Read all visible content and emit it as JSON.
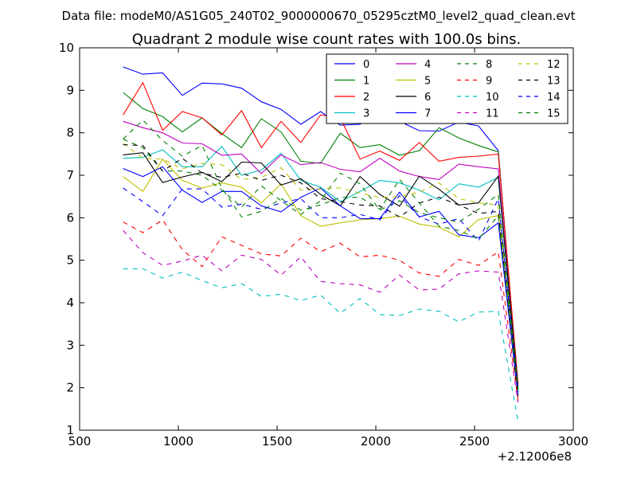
{
  "chart_data": {
    "type": "line",
    "suptitle": "Data file: modeM0/AS1G05_240T02_9000000670_05295cztM0_level2_quad_clean.evt",
    "title": "Quadrant 2 module wise count rates with 100.0s bins.",
    "xlabel": "",
    "ylabel": "",
    "x_offset_label": "+2.12006e8",
    "xlim": [
      500,
      3000
    ],
    "ylim": [
      1,
      10
    ],
    "xticks": [
      "500",
      "1000",
      "1500",
      "2000",
      "2500",
      "3000"
    ],
    "yticks": [
      "1",
      "2",
      "3",
      "4",
      "5",
      "6",
      "7",
      "8",
      "9",
      "10"
    ],
    "grid": false,
    "legend_position": "top-right",
    "legend_columns": 4,
    "x": [
      720,
      820,
      920,
      1020,
      1120,
      1220,
      1320,
      1420,
      1520,
      1620,
      1720,
      1820,
      1920,
      2020,
      2120,
      2220,
      2320,
      2420,
      2520,
      2620,
      2720
    ],
    "series": [
      {
        "name": "0",
        "color": "#0000ff",
        "dash": "solid",
        "values": [
          9.55,
          9.38,
          9.41,
          8.88,
          9.17,
          9.15,
          9.05,
          8.73,
          8.55,
          8.2,
          8.5,
          8.18,
          8.2,
          8.52,
          8.27,
          8.05,
          8.04,
          8.25,
          8.16,
          7.58,
          1.95
        ]
      },
      {
        "name": "1",
        "color": "#008000",
        "dash": "solid",
        "values": [
          8.95,
          8.57,
          8.38,
          8.02,
          8.35,
          7.98,
          7.65,
          8.33,
          8.02,
          7.33,
          7.28,
          7.99,
          7.65,
          7.72,
          7.47,
          7.58,
          8.12,
          7.88,
          7.7,
          7.55,
          2.05
        ]
      },
      {
        "name": "2",
        "color": "#ff0000",
        "dash": "solid",
        "values": [
          8.42,
          9.18,
          8.06,
          8.5,
          8.35,
          7.95,
          8.52,
          7.65,
          8.27,
          7.77,
          8.42,
          8.35,
          7.38,
          7.57,
          7.35,
          7.77,
          7.33,
          7.42,
          7.45,
          7.5,
          2.1
        ]
      },
      {
        "name": "3",
        "color": "#00bfbf",
        "dash": "solid",
        "values": [
          7.4,
          7.42,
          7.6,
          7.2,
          7.2,
          7.68,
          7.0,
          7.12,
          7.52,
          6.88,
          6.72,
          6.38,
          6.62,
          6.88,
          6.82,
          6.65,
          6.42,
          6.8,
          6.72,
          6.95,
          2.0
        ]
      },
      {
        "name": "4",
        "color": "#bf00bf",
        "dash": "solid",
        "values": [
          8.27,
          8.12,
          8.0,
          7.76,
          7.74,
          7.47,
          7.5,
          7.04,
          7.48,
          7.25,
          7.3,
          7.14,
          7.08,
          7.4,
          7.1,
          6.97,
          6.9,
          7.26,
          7.2,
          7.15,
          1.9
        ]
      },
      {
        "name": "5",
        "color": "#bfbf00",
        "dash": "solid",
        "values": [
          6.97,
          6.62,
          7.38,
          6.88,
          6.7,
          6.82,
          6.72,
          6.35,
          6.8,
          6.05,
          5.8,
          5.88,
          5.95,
          5.98,
          6.04,
          5.85,
          5.78,
          5.55,
          5.96,
          6.05,
          1.85
        ]
      },
      {
        "name": "6",
        "color": "#000000",
        "dash": "solid",
        "values": [
          7.48,
          7.53,
          6.83,
          6.96,
          7.07,
          6.85,
          7.31,
          7.29,
          6.77,
          6.92,
          6.55,
          6.28,
          6.97,
          6.55,
          6.27,
          6.98,
          6.67,
          6.3,
          6.35,
          6.98,
          2.0
        ]
      },
      {
        "name": "7",
        "color": "#0000ff",
        "dash": "solid",
        "values": [
          7.16,
          6.97,
          7.2,
          6.65,
          6.36,
          6.62,
          6.62,
          6.28,
          6.14,
          6.48,
          6.7,
          6.28,
          5.98,
          5.98,
          6.6,
          6.02,
          6.15,
          5.6,
          5.53,
          5.88,
          1.8
        ]
      },
      {
        "name": "8",
        "color": "#008000",
        "dash": "dashed",
        "values": [
          7.85,
          7.65,
          7.1,
          7.1,
          7.0,
          6.65,
          6.25,
          6.75,
          6.4,
          6.08,
          6.4,
          7.05,
          6.8,
          6.18,
          6.4,
          6.12,
          6.0,
          5.9,
          6.2,
          6.55,
          1.95
        ]
      },
      {
        "name": "9",
        "color": "#ff0000",
        "dash": "dashed",
        "values": [
          5.9,
          5.65,
          5.95,
          5.25,
          4.85,
          5.55,
          5.35,
          5.15,
          5.1,
          5.52,
          5.2,
          5.4,
          5.08,
          5.12,
          5.0,
          4.7,
          4.62,
          5.02,
          4.88,
          5.2,
          1.7
        ]
      },
      {
        "name": "10",
        "color": "#00bfbf",
        "dash": "dashed",
        "values": [
          4.8,
          4.8,
          4.58,
          4.72,
          4.52,
          4.35,
          4.45,
          4.15,
          4.2,
          4.05,
          4.18,
          3.75,
          4.1,
          3.72,
          3.7,
          3.85,
          3.8,
          3.55,
          3.78,
          3.8,
          1.2
        ]
      },
      {
        "name": "11",
        "color": "#bf00bf",
        "dash": "dashed",
        "values": [
          5.7,
          5.18,
          4.88,
          4.98,
          5.12,
          4.75,
          5.12,
          5.02,
          4.65,
          5.08,
          4.5,
          4.45,
          4.42,
          4.25,
          4.65,
          4.3,
          4.32,
          4.68,
          4.75,
          4.72,
          1.65
        ]
      },
      {
        "name": "12",
        "color": "#bfbf00",
        "dash": "dashed",
        "values": [
          7.75,
          7.4,
          7.38,
          7.15,
          7.28,
          7.25,
          6.9,
          6.95,
          7.18,
          6.65,
          6.68,
          6.7,
          6.58,
          6.48,
          6.5,
          6.6,
          6.82,
          6.45,
          6.35,
          6.3,
          1.85
        ]
      },
      {
        "name": "13",
        "color": "#000000",
        "dash": "dashed",
        "values": [
          7.72,
          7.7,
          7.1,
          7.4,
          7.05,
          6.95,
          7.05,
          6.88,
          7.0,
          6.82,
          6.45,
          6.38,
          6.3,
          6.28,
          6.02,
          6.35,
          6.48,
          6.3,
          6.1,
          6.15,
          1.8
        ]
      },
      {
        "name": "14",
        "color": "#0000ff",
        "dash": "dashed",
        "values": [
          6.7,
          6.38,
          6.05,
          6.68,
          6.68,
          6.25,
          6.32,
          6.2,
          6.35,
          6.45,
          6.0,
          6.0,
          6.08,
          5.95,
          6.52,
          6.02,
          5.85,
          5.98,
          5.45,
          6.45,
          1.9
        ]
      },
      {
        "name": "15",
        "color": "#008000",
        "dash": "dashed",
        "values": [
          7.85,
          8.3,
          7.82,
          7.45,
          7.7,
          6.7,
          6.02,
          6.15,
          6.45,
          6.18,
          6.3,
          6.48,
          6.48,
          6.2,
          6.9,
          6.35,
          5.8,
          5.7,
          5.5,
          6.05,
          1.95
        ]
      }
    ]
  }
}
